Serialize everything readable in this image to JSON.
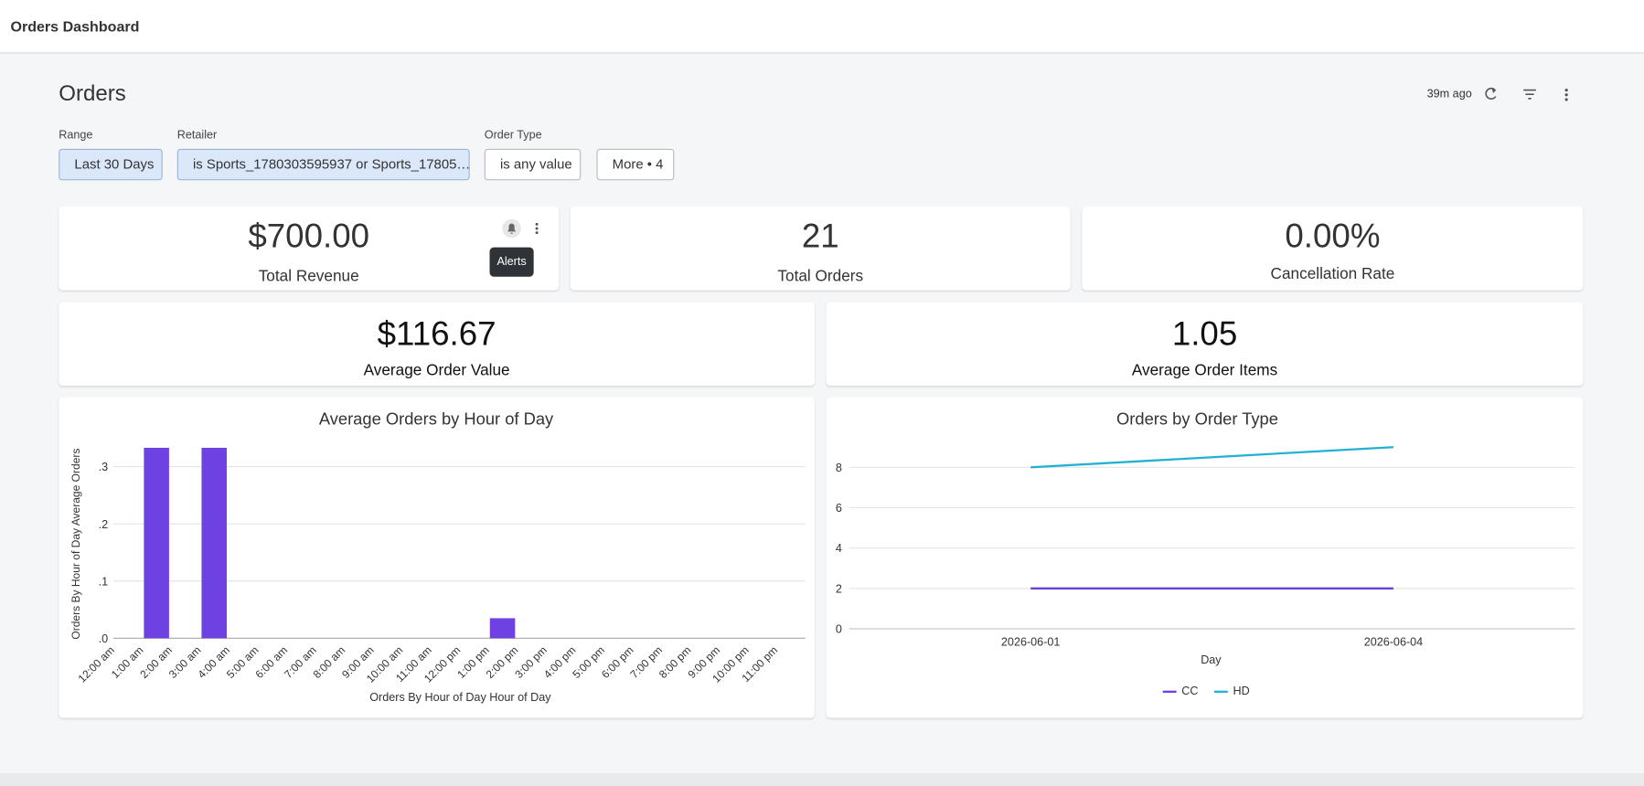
{
  "header": {
    "title": "Orders Dashboard"
  },
  "dashboard": {
    "title": "Orders",
    "updated": "39m ago"
  },
  "filters": [
    {
      "label": "Range",
      "value": "Last 30 Days"
    },
    {
      "label": "Retailer",
      "value": "is Sports_1780303595937 or Sports_17805…"
    },
    {
      "label": "Order Type",
      "value": "is any value"
    }
  ],
  "more_filters": "More • 4",
  "tooltip": "Alerts",
  "kpis": [
    {
      "value": "$700.00",
      "label": "Total Revenue"
    },
    {
      "value": "21",
      "label": "Total Orders"
    },
    {
      "value": "0.00%",
      "label": "Cancellation Rate"
    },
    {
      "value": "$116.67",
      "label": "Average Order Value"
    },
    {
      "value": "1.05",
      "label": "Average Order Items"
    }
  ],
  "chart_data": [
    {
      "type": "bar",
      "title": "Average Orders by Hour of Day",
      "x_label": "Orders By Hour of Day Hour of Day",
      "y_label": "Orders By Hour of Day Average Orders",
      "categories": [
        "12:00 am",
        "1:00 am",
        "2:00 am",
        "3:00 am",
        "4:00 am",
        "5:00 am",
        "6:00 am",
        "7:00 am",
        "8:00 am",
        "9:00 am",
        "10:00 am",
        "11:00 am",
        "12:00 pm",
        "1:00 pm",
        "2:00 pm",
        "3:00 pm",
        "4:00 pm",
        "5:00 pm",
        "6:00 pm",
        "7:00 pm",
        "8:00 pm",
        "9:00 pm",
        "10:00 pm",
        "11:00 pm"
      ],
      "values": [
        0,
        0.333,
        0,
        0.333,
        0,
        0,
        0,
        0,
        0,
        0,
        0,
        0,
        0,
        0.035,
        0,
        0,
        0,
        0,
        0,
        0,
        0,
        0,
        0,
        0
      ],
      "color": "#6e41e2",
      "ylim": [
        0,
        0.35
      ],
      "yticks": [
        {
          "value": 0,
          "label": ".0"
        },
        {
          "value": 0.1,
          "label": ".1"
        },
        {
          "value": 0.2,
          "label": ".2"
        },
        {
          "value": 0.3,
          "label": ".3"
        }
      ],
      "grid": true
    },
    {
      "type": "line",
      "title": "Orders by Order Type",
      "x_label": "Day",
      "x": [
        "2026-06-01",
        "2026-06-04"
      ],
      "series": [
        {
          "name": "CC",
          "color": "#6c3fd8",
          "values": [
            2,
            2
          ]
        },
        {
          "name": "HD",
          "color": "#22b1d4",
          "values": [
            8,
            9
          ]
        }
      ],
      "ylim": [
        0,
        9.5
      ],
      "yticks": [
        0,
        2,
        4,
        6,
        8
      ],
      "grid": true,
      "legend": "bottom"
    }
  ]
}
